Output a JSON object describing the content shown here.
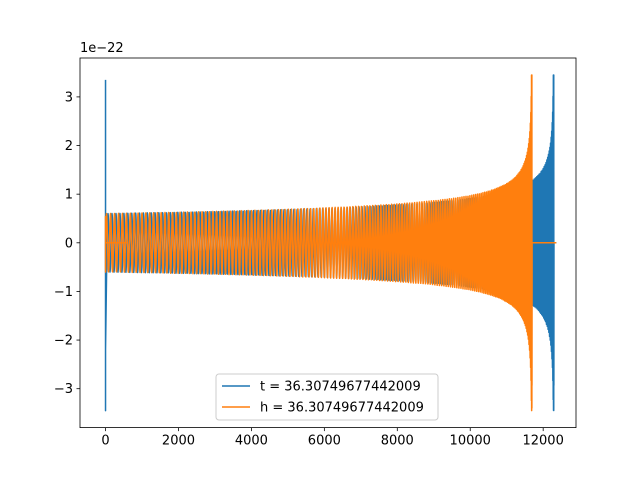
{
  "chart_data": {
    "type": "line",
    "title": "",
    "xlabel": "",
    "ylabel": "",
    "y_offset_text": "1e−22",
    "xlim": [
      -700,
      12900
    ],
    "ylim": [
      -3.8,
      3.8
    ],
    "x_ticks": [
      0,
      2000,
      4000,
      6000,
      8000,
      10000,
      12000
    ],
    "x_tick_labels": [
      "0",
      "2000",
      "4000",
      "6000",
      "8000",
      "10000",
      "12000"
    ],
    "y_ticks": [
      -3,
      -2,
      -1,
      0,
      1,
      2,
      3
    ],
    "y_tick_labels": [
      "−3",
      "−2",
      "−1",
      "0",
      "1",
      "2",
      "3"
    ],
    "grid": false,
    "legend_position": "lower-center",
    "series": [
      {
        "name": "t = 36.30749677442009",
        "color": "#1f77b4",
        "signal": "chirp",
        "glitch": {
          "x": 0,
          "values": [
            3.35,
            -3.45,
            3.1,
            -2.2
          ]
        },
        "chirp_start_x": 40,
        "merger_x": 12290,
        "early_amplitude": 0.6,
        "peak_amplitude": 3.45,
        "after_merger": "flat-zero",
        "end_x": 12360
      },
      {
        "name": "h = 36.30749677442009",
        "color": "#ff7f0e",
        "signal": "chirp",
        "glitch": {
          "x": 0,
          "values": [
            0.55,
            -0.6
          ]
        },
        "flat_segment": [
          0,
          560
        ],
        "chirp_start_x": 0,
        "merger_x": 11690,
        "early_amplitude": 0.6,
        "peak_amplitude": 3.45,
        "after_merger": "flat-zero",
        "end_x": 12360
      }
    ]
  }
}
